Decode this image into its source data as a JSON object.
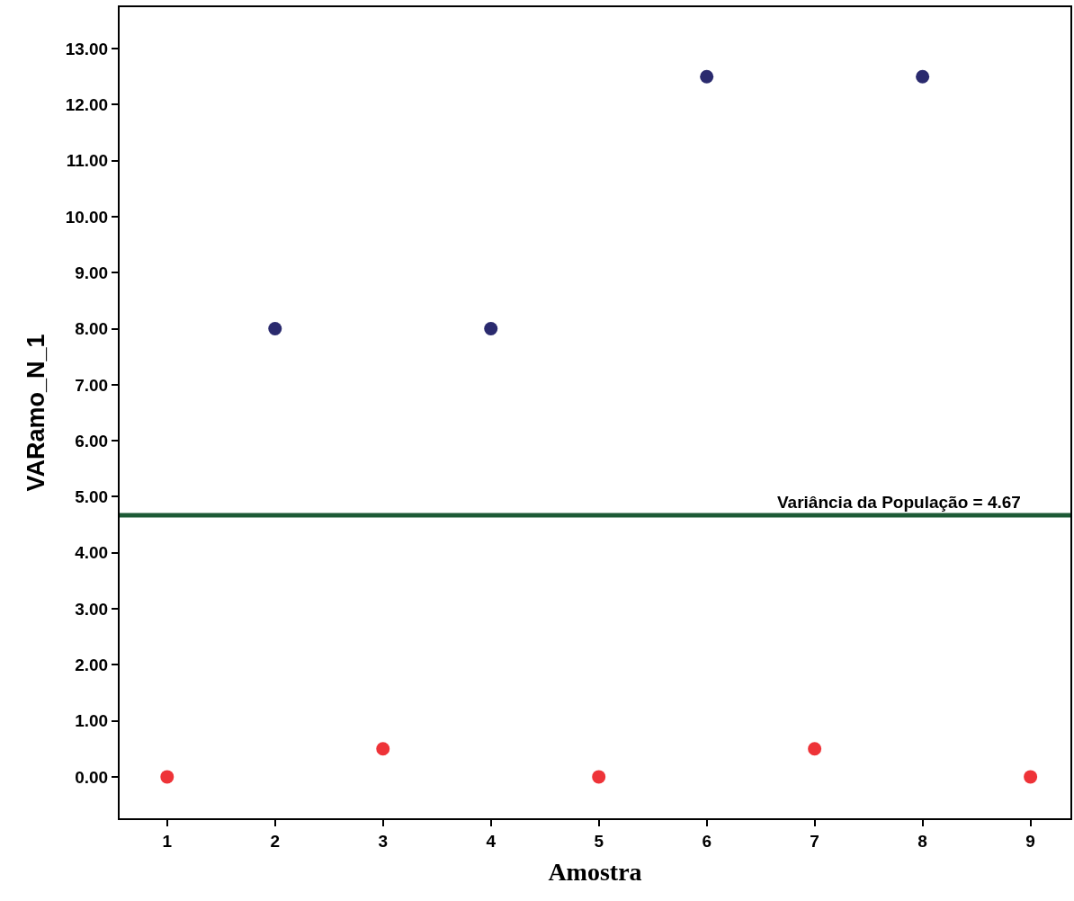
{
  "chart_data": {
    "type": "scatter",
    "xlabel": "Amostra",
    "ylabel": "VARamo_N_1",
    "x": [
      1,
      2,
      3,
      4,
      5,
      6,
      7,
      8,
      9
    ],
    "series": [
      {
        "values": [
          0,
          8,
          0.5,
          8,
          0,
          12.5,
          0.5,
          12.5,
          0
        ],
        "colors": [
          "#ee3338",
          "#2a2a6e",
          "#ee3338",
          "#2a2a6e",
          "#ee3338",
          "#2a2a6e",
          "#ee3338",
          "#2a2a6e",
          "#ee3338"
        ]
      }
    ],
    "xlim": [
      0.56,
      9.37
    ],
    "xticks": [
      1,
      2,
      3,
      4,
      5,
      6,
      7,
      8,
      9
    ],
    "ylim": [
      -0.74,
      13.74
    ],
    "yticks": [
      {
        "value": 0,
        "label": "0.00"
      },
      {
        "value": 1,
        "label": "1.00"
      },
      {
        "value": 2,
        "label": "2.00"
      },
      {
        "value": 3,
        "label": "3.00"
      },
      {
        "value": 4,
        "label": "4.00"
      },
      {
        "value": 5,
        "label": "5.00"
      },
      {
        "value": 6,
        "label": "6.00"
      },
      {
        "value": 7,
        "label": "7.00"
      },
      {
        "value": 8,
        "label": "8.00"
      },
      {
        "value": 9,
        "label": "9.00"
      },
      {
        "value": 10,
        "label": "10.00"
      },
      {
        "value": 11,
        "label": "11.00"
      },
      {
        "value": 12,
        "label": "12.00"
      },
      {
        "value": 13,
        "label": "13.00"
      }
    ],
    "ref_lines": [
      {
        "axis": "y",
        "value": 4.67,
        "label": "Variância da População = 4.67",
        "color": "#1d5a36",
        "line_style": "solid"
      }
    ],
    "marker": "circle"
  }
}
